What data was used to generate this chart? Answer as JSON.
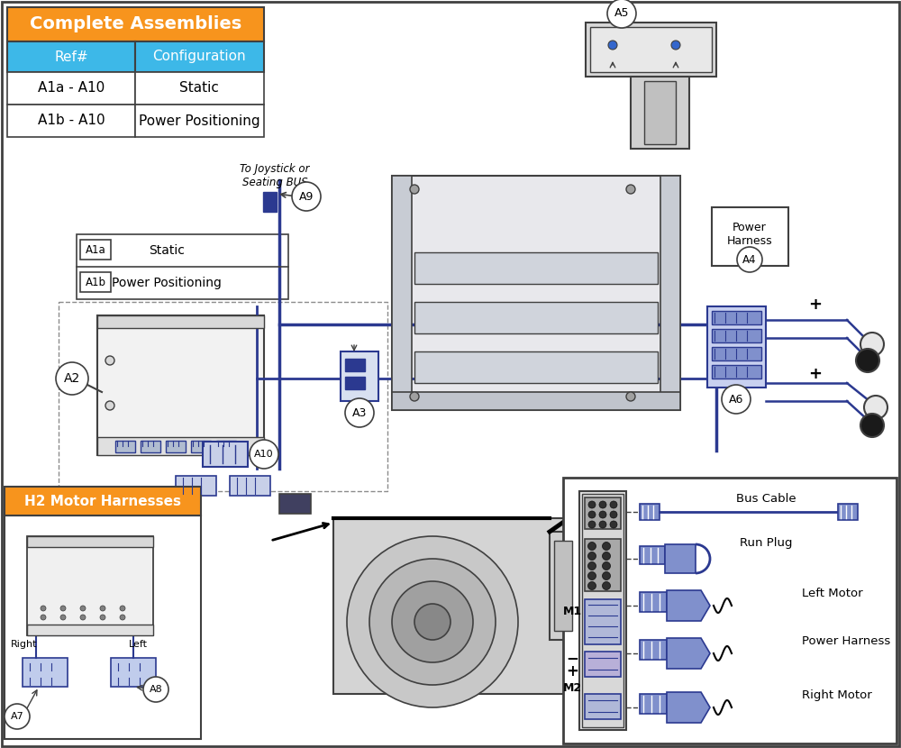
{
  "bg_color": "#ffffff",
  "blue": "#2b3990",
  "light_blue": "#3db8e8",
  "orange": "#f7941d",
  "dark_gray": "#404040",
  "mid_gray": "#808080",
  "light_gray": "#d8d8d8",
  "table_title": "Complete Assemblies",
  "table_col1": "Ref#",
  "table_col2": "Configuration",
  "table_rows": [
    [
      "A1a - A10",
      "Static"
    ],
    [
      "A1b - A10",
      "Power Positioning"
    ]
  ],
  "h2_title": "H2 Motor Harnesses",
  "static_label": "Static",
  "power_label": "Power Positioning",
  "joystick_text": "To Joystick or\nSeating BUS",
  "power_harness_label": "Power\nHarness",
  "bus_cable_label": "Bus Cable",
  "run_plug_label": "Run Plug",
  "left_motor_label": "Left Motor",
  "power_harness_label2": "Power Harness",
  "right_motor_label": "Right Motor"
}
